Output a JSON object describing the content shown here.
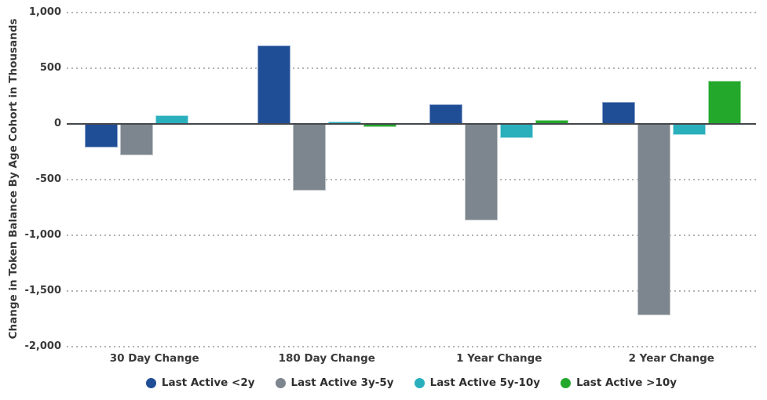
{
  "chart_data": {
    "type": "bar",
    "title": "",
    "xlabel": "",
    "ylabel": "Change in Token Balance By Age Cohort in Thousands",
    "categories": [
      "30 Day Change",
      "180 Day Change",
      "1 Year Change",
      "2 Year Change"
    ],
    "series": [
      {
        "name": "Last Active <2y",
        "color": "#1f4e96",
        "edge_color": "#8aa3cc",
        "values": [
          -210,
          705,
          175,
          200
        ]
      },
      {
        "name": "Last Active 3y-5y",
        "color": "#7d868e",
        "edge_color": "#bfc4c8",
        "values": [
          -285,
          -600,
          -865,
          -1715
        ]
      },
      {
        "name": "Last Active 5y-10y",
        "color": "#2aafbd",
        "edge_color": "#a3dde3",
        "values": [
          80,
          20,
          -125,
          -100
        ]
      },
      {
        "name": "Last Active >10y",
        "color": "#23a82b",
        "edge_color": "#9bd89e",
        "values": [
          10,
          -30,
          35,
          385
        ]
      }
    ],
    "ylim": [
      -2000,
      1000
    ],
    "y_ticks": [
      {
        "value": 1000,
        "label": "1,000"
      },
      {
        "value": 500,
        "label": "500"
      },
      {
        "value": 0,
        "label": "0"
      },
      {
        "value": -500,
        "label": "-500"
      },
      {
        "value": -1000,
        "label": "-1,000"
      },
      {
        "value": -1500,
        "label": "-1,500"
      },
      {
        "value": -2000,
        "label": "-2,000"
      }
    ],
    "grid": "horizontal-dotted",
    "legend_position": "bottom",
    "axis_color": "#45484b",
    "grid_color": "#b3b3b3",
    "text_color": "#3a3a3a"
  }
}
